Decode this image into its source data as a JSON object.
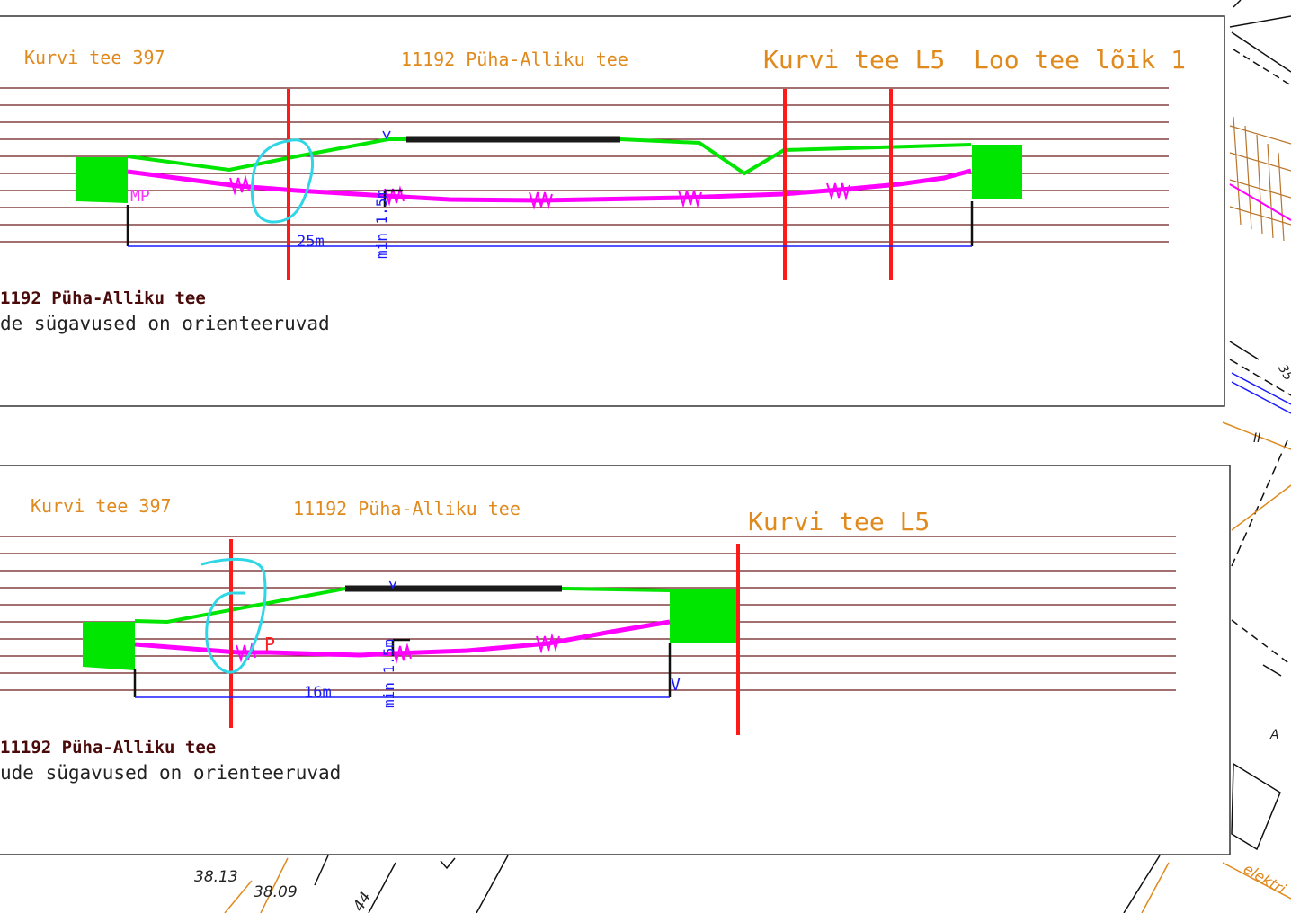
{
  "colors": {
    "frame": "#333333",
    "grid_line": "#6b1a1a",
    "road_surface": "#00e600",
    "pipe": "#ff00ff",
    "boundary": "#ff1a1a",
    "dimension": "#1a1aff",
    "label_orange": "#e08a1e",
    "annotation_circle": "#2fd6e6"
  },
  "panel1": {
    "label_left": "Kurvi tee 397",
    "label_center": "11192 Püha-Alliku tee",
    "label_right1": "Kurvi tee L5",
    "label_right2": "Loo tee lõik 1",
    "marker_mp": "MP",
    "marker_v": "V",
    "dim_length": "25m",
    "dim_depth": "min 1.5m",
    "caption_title": "1192 Püha-Alliku tee",
    "caption_text": "de sügavused on orienteeruvad"
  },
  "panel2": {
    "label_left": "Kurvi tee 397",
    "label_center": "11192 Püha-Alliku tee",
    "label_right1": "Kurvi tee L5",
    "marker_p": "P",
    "marker_v_top": "V",
    "marker_v_right": "V",
    "dim_length": "16m",
    "dim_depth": "min 1.5m",
    "caption_title": "11192 Püha-Alliku tee",
    "caption_text": "ude sügavused on orienteeruvad"
  },
  "background_map": {
    "elev1": "38.13",
    "elev2": "38.09",
    "elev3": "44",
    "mark_a": "A",
    "mark_35": "35",
    "mark_ii": "II",
    "elektri": "elektri"
  }
}
